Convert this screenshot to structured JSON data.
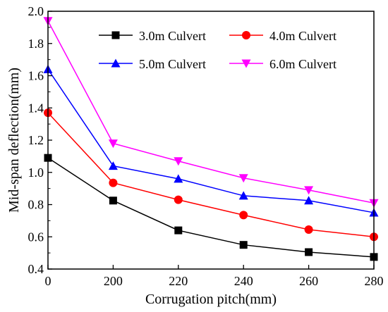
{
  "chart_data": {
    "type": "line",
    "title": "",
    "xlabel": "Corrugation pitch(mm)",
    "ylabel": "Mid-span deflection(mm)",
    "categories": [
      "0",
      "200",
      "220",
      "240",
      "260",
      "280"
    ],
    "ylim": [
      0.4,
      2.0
    ],
    "yticks": [
      "0.4",
      "0.6",
      "0.8",
      "1.0",
      "1.2",
      "1.4",
      "1.6",
      "1.8",
      "2.0"
    ],
    "grid": false,
    "legend_position": "top-right",
    "series": [
      {
        "name": "3.0m Culvert",
        "color": "#000000",
        "marker": "square",
        "values": [
          1.09,
          0.825,
          0.64,
          0.55,
          0.505,
          0.475
        ]
      },
      {
        "name": "4.0m Culvert",
        "color": "#ff0000",
        "marker": "circle",
        "values": [
          1.37,
          0.935,
          0.83,
          0.735,
          0.645,
          0.6
        ]
      },
      {
        "name": "5.0m Culvert",
        "color": "#0000ff",
        "marker": "triangle-up",
        "values": [
          1.64,
          1.04,
          0.96,
          0.855,
          0.825,
          0.75
        ]
      },
      {
        "name": "6.0m Culvert",
        "color": "#ff00ff",
        "marker": "triangle-down",
        "values": [
          1.94,
          1.18,
          1.07,
          0.965,
          0.89,
          0.81
        ]
      }
    ]
  }
}
